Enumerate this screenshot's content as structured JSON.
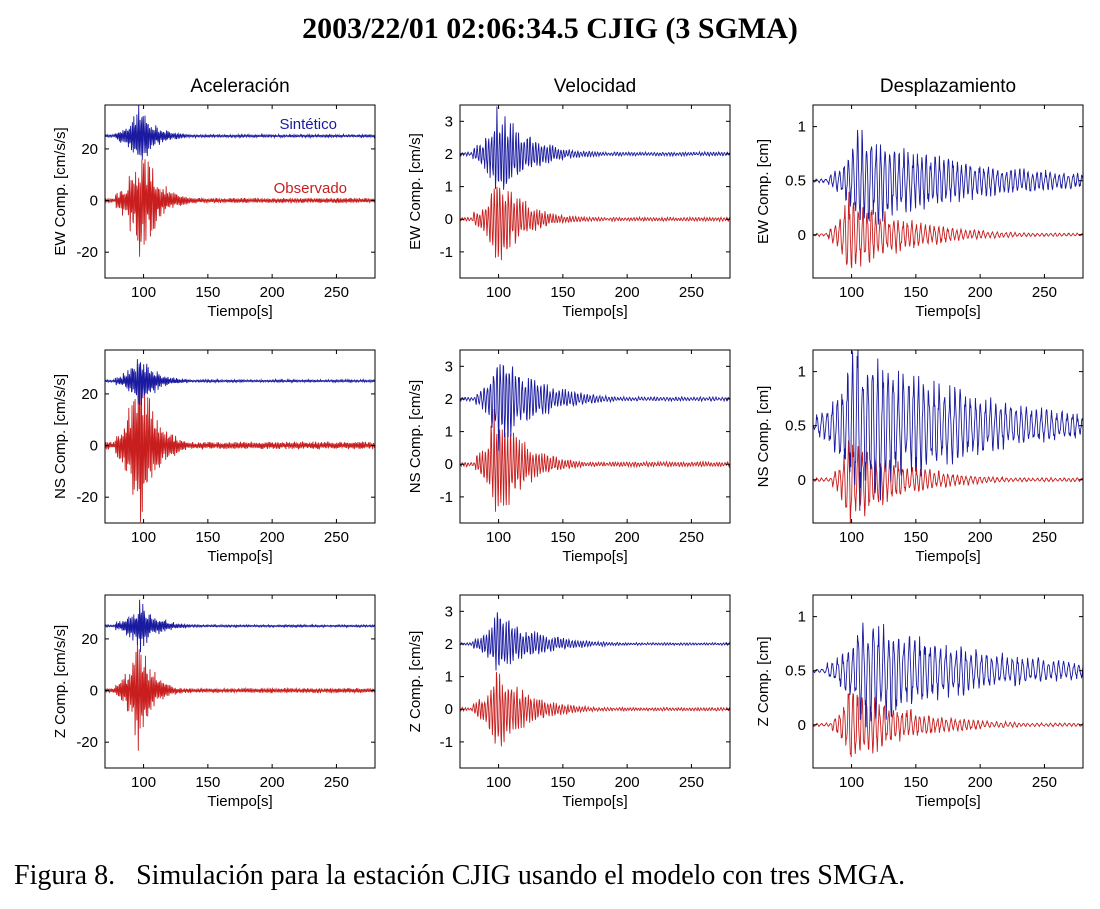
{
  "title": "2003/22/01   02:06:34.5 CJIG (3 SGMA)",
  "caption": "Figura 8.   Simulación para la estación CJIG usando el modelo con tres SMGA.",
  "colors": {
    "synthetic": "#1a1aa0",
    "observed": "#c81e1e"
  },
  "legend": {
    "synthetic": "Sintético",
    "observed": "Observado"
  },
  "columns": [
    "Aceleración",
    "Velocidad",
    "Desplazamiento"
  ],
  "chart_data": {
    "type": "line",
    "title": "2003/22/01   02:06:34.5 CJIG (3 SGMA)",
    "layout": "3x3 grid",
    "xlabel": "Tiempo[s]",
    "xlim": [
      70,
      280
    ],
    "xticks": [
      100,
      150,
      200,
      250
    ],
    "series_names": [
      "Sintético",
      "Observado"
    ],
    "legend_placement": "top-right of first panel",
    "description": "Seismic waveforms; synthetic trace offset upward, observed trace centered at 0. Waveforms represented by parametric envelope summaries (onset, peak time, peak amplitude, decay).",
    "panels": [
      {
        "row": 0,
        "col": 0,
        "quantity": "Aceleración",
        "ylabel": "EW Comp. [cm/s/s]",
        "ylim": [
          -30,
          37
        ],
        "yticks": [
          -20,
          0,
          20
        ],
        "ytick_labels": [
          "-20",
          "0",
          "20"
        ],
        "synthetic": {
          "offset": 25,
          "onset": 78,
          "peak_time": 97,
          "peak_amp": 10,
          "decay": 12,
          "period": 1.2
        },
        "observed": {
          "offset": 0,
          "onset": 78,
          "peak_time": 97,
          "peak_amp": 18,
          "decay": 14,
          "period": 1.2
        }
      },
      {
        "row": 0,
        "col": 1,
        "quantity": "Velocidad",
        "ylabel": "EW Comp. [cm/s]",
        "ylim": [
          -1.8,
          3.5
        ],
        "yticks": [
          -1,
          0,
          1,
          2,
          3
        ],
        "ytick_labels": [
          "-1",
          "0",
          "1",
          "2",
          "3"
        ],
        "synthetic": {
          "offset": 2,
          "onset": 80,
          "peak_time": 99,
          "peak_amp": 1.1,
          "decay": 25,
          "period": 2.2
        },
        "observed": {
          "offset": 0,
          "onset": 80,
          "peak_time": 99,
          "peak_amp": 1.1,
          "decay": 22,
          "period": 2.2
        }
      },
      {
        "row": 0,
        "col": 2,
        "quantity": "Desplazamiento",
        "ylabel": "EW Comp. [cm]",
        "ylim": [
          -0.4,
          1.2
        ],
        "yticks": [
          0,
          0.5,
          1
        ],
        "ytick_labels": [
          "0",
          "0.5",
          "1"
        ],
        "synthetic": {
          "offset": 0.5,
          "onset": 82,
          "peak_time": 105,
          "peak_amp": 0.35,
          "decay": 90,
          "period": 3.5
        },
        "observed": {
          "offset": 0,
          "onset": 82,
          "peak_time": 97,
          "peak_amp": 0.3,
          "decay": 45,
          "period": 3.5
        }
      },
      {
        "row": 1,
        "col": 0,
        "quantity": "Aceleración",
        "ylabel": "NS Comp. [cm/s/s]",
        "ylim": [
          -30,
          37
        ],
        "yticks": [
          -20,
          0,
          20
        ],
        "ytick_labels": [
          "-20",
          "0",
          "20"
        ],
        "synthetic": {
          "offset": 25,
          "onset": 78,
          "peak_time": 97,
          "peak_amp": 9,
          "decay": 12,
          "period": 1.2
        },
        "observed": {
          "offset": 0,
          "onset": 78,
          "peak_time": 97,
          "peak_amp": 28,
          "decay": 12,
          "period": 1.2
        }
      },
      {
        "row": 1,
        "col": 1,
        "quantity": "Velocidad",
        "ylabel": "NS Comp. [cm/s]",
        "ylim": [
          -1.8,
          3.5
        ],
        "yticks": [
          -1,
          0,
          1,
          2,
          3
        ],
        "ytick_labels": [
          "-1",
          "0",
          "1",
          "2",
          "3"
        ],
        "synthetic": {
          "offset": 2,
          "onset": 82,
          "peak_time": 100,
          "peak_amp": 1.2,
          "decay": 30,
          "period": 2.4
        },
        "observed": {
          "offset": 0,
          "onset": 82,
          "peak_time": 98,
          "peak_amp": 1.4,
          "decay": 22,
          "period": 2.2
        }
      },
      {
        "row": 1,
        "col": 2,
        "quantity": "Desplazamiento",
        "ylabel": "NS Comp. [cm]",
        "ylim": [
          -0.4,
          1.2
        ],
        "yticks": [
          0,
          0.5,
          1
        ],
        "ytick_labels": [
          "0",
          "0.5",
          "1"
        ],
        "synthetic": {
          "offset": 0.5,
          "onset": 72,
          "peak_time": 104,
          "peak_amp": 0.6,
          "decay": 90,
          "period": 4
        },
        "observed": {
          "offset": 0,
          "onset": 85,
          "peak_time": 98,
          "peak_amp": 0.35,
          "decay": 40,
          "period": 3.5
        }
      },
      {
        "row": 2,
        "col": 0,
        "quantity": "Aceleración",
        "ylabel": "Z Comp. [cm/s/s]",
        "ylim": [
          -30,
          37
        ],
        "yticks": [
          -20,
          0,
          20
        ],
        "ytick_labels": [
          "-20",
          "0",
          "20"
        ],
        "synthetic": {
          "offset": 25,
          "onset": 78,
          "peak_time": 97,
          "peak_amp": 8,
          "decay": 13,
          "period": 1.2
        },
        "observed": {
          "offset": 0,
          "onset": 78,
          "peak_time": 96,
          "peak_amp": 17,
          "decay": 11,
          "period": 1.2
        }
      },
      {
        "row": 2,
        "col": 1,
        "quantity": "Velocidad",
        "ylabel": "Z Comp. [cm/s]",
        "ylim": [
          -1.8,
          3.5
        ],
        "yticks": [
          -1,
          0,
          1,
          2,
          3
        ],
        "ytick_labels": [
          "-1",
          "0",
          "1",
          "2",
          "3"
        ],
        "synthetic": {
          "offset": 2,
          "onset": 80,
          "peak_time": 100,
          "peak_amp": 0.75,
          "decay": 30,
          "period": 2.2
        },
        "observed": {
          "offset": 0,
          "onset": 80,
          "peak_time": 98,
          "peak_amp": 1.0,
          "decay": 25,
          "period": 2.2
        }
      },
      {
        "row": 2,
        "col": 2,
        "quantity": "Desplazamiento",
        "ylabel": "Z Comp. [cm]",
        "ylim": [
          -0.4,
          1.2
        ],
        "yticks": [
          0,
          0.5,
          1
        ],
        "ytick_labels": [
          "0",
          "0.5",
          "1"
        ],
        "synthetic": {
          "offset": 0.5,
          "onset": 80,
          "peak_time": 108,
          "peak_amp": 0.4,
          "decay": 90,
          "period": 4
        },
        "observed": {
          "offset": 0,
          "onset": 85,
          "peak_time": 98,
          "peak_amp": 0.3,
          "decay": 45,
          "period": 3.5
        }
      }
    ]
  }
}
